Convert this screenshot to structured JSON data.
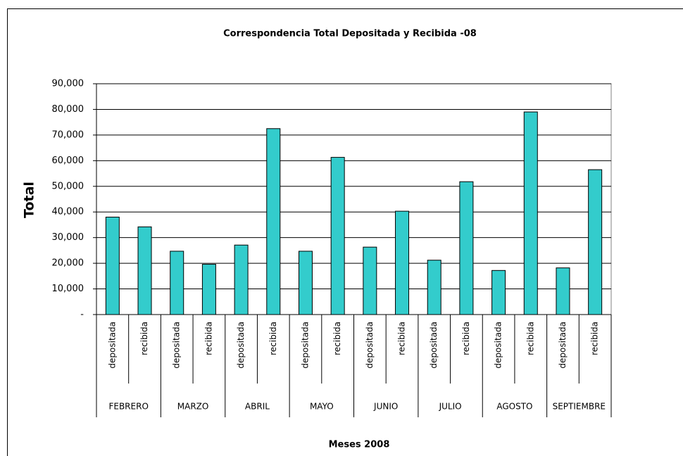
{
  "chart_data": {
    "type": "bar",
    "title": "Correspondencia Total Depositada y  Recibida -08",
    "x_label": "Meses 2008",
    "y_label": "Total",
    "categories": [
      "depositada",
      "recibida",
      "depositada",
      "recibida",
      "depositada",
      "recibida",
      "depositada",
      "recibida",
      "depositada",
      "recibida",
      "depositada",
      "recibida",
      "depositada",
      "recibida",
      "depositada",
      "recibida"
    ],
    "groups": [
      "FEBRERO",
      "MARZO",
      "ABRIL",
      "MAYO",
      "JUNIO",
      "JULIO",
      "AGOSTO",
      "SEPTIEMBRE"
    ],
    "values": [
      38000,
      34200,
      24700,
      19600,
      27100,
      72500,
      24700,
      61300,
      26300,
      40300,
      21200,
      51800,
      17200,
      79000,
      18200,
      56500
    ],
    "color": "#33cccc",
    "ylim": [
      0,
      90000
    ],
    "yticks": [
      {
        "value": 0,
        "label": "-"
      },
      {
        "value": 10000,
        "label": "10,000"
      },
      {
        "value": 20000,
        "label": "20,000"
      },
      {
        "value": 30000,
        "label": "30,000"
      },
      {
        "value": 40000,
        "label": "40,000"
      },
      {
        "value": 50000,
        "label": "50,000"
      },
      {
        "value": 60000,
        "label": "60,000"
      },
      {
        "value": 70000,
        "label": "70,000"
      },
      {
        "value": 80000,
        "label": "80,000"
      },
      {
        "value": 90000,
        "label": "90,000"
      }
    ],
    "grid": true
  }
}
